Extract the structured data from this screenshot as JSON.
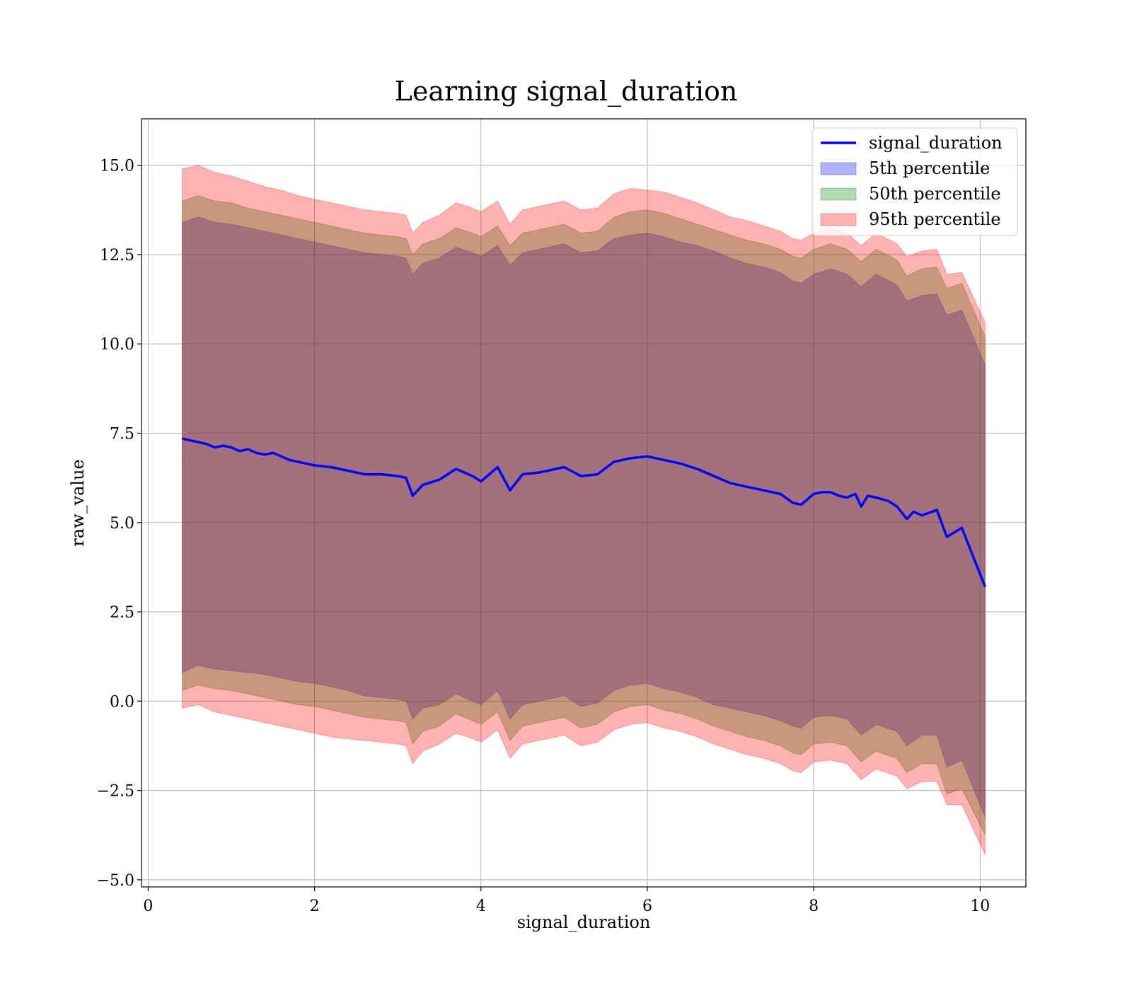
{
  "chart_data": {
    "type": "area",
    "title": "Learning signal_duration",
    "xlabel": "signal_duration",
    "ylabel": "raw_value",
    "xlim": [
      -0.08,
      10.55
    ],
    "ylim": [
      -5.2,
      16.3
    ],
    "xticks": [
      0,
      2,
      4,
      6,
      8,
      10
    ],
    "xtick_labels": [
      "0",
      "2",
      "4",
      "6",
      "8",
      "10"
    ],
    "yticks": [
      -5.0,
      -2.5,
      0.0,
      2.5,
      5.0,
      7.5,
      10.0,
      12.5,
      15.0
    ],
    "ytick_labels": [
      "−5.0",
      "−2.5",
      "0.0",
      "2.5",
      "5.0",
      "7.5",
      "10.0",
      "12.5",
      "15.0"
    ],
    "grid": true,
    "legend_position": "top-right",
    "colors": {
      "line": "#0000ff",
      "band_5th": "#0000ff",
      "band_50th": "#008000",
      "band_95th": "#ff0000"
    },
    "series": [
      {
        "name": "signal_duration",
        "kind": "line",
        "x": [
          0.41,
          0.5,
          0.6,
          0.7,
          0.8,
          0.9,
          1.0,
          1.1,
          1.2,
          1.3,
          1.4,
          1.5,
          1.6,
          1.7,
          1.8,
          1.9,
          2.0,
          2.2,
          2.4,
          2.6,
          2.8,
          3.0,
          3.1,
          3.18,
          3.3,
          3.5,
          3.7,
          3.9,
          4.0,
          4.2,
          4.35,
          4.5,
          4.7,
          4.9,
          5.0,
          5.2,
          5.4,
          5.6,
          5.8,
          6.0,
          6.2,
          6.4,
          6.6,
          6.8,
          7.0,
          7.2,
          7.4,
          7.6,
          7.75,
          7.85,
          8.0,
          8.1,
          8.2,
          8.3,
          8.4,
          8.5,
          8.57,
          8.65,
          8.75,
          8.9,
          9.0,
          9.12,
          9.2,
          9.3,
          9.48,
          9.6,
          9.78,
          10.06
        ],
        "y": [
          7.35,
          7.3,
          7.25,
          7.2,
          7.1,
          7.15,
          7.1,
          7.0,
          7.05,
          6.95,
          6.9,
          6.95,
          6.85,
          6.75,
          6.7,
          6.65,
          6.6,
          6.55,
          6.45,
          6.35,
          6.35,
          6.3,
          6.25,
          5.75,
          6.05,
          6.2,
          6.5,
          6.3,
          6.15,
          6.55,
          5.9,
          6.35,
          6.4,
          6.5,
          6.55,
          6.3,
          6.35,
          6.7,
          6.8,
          6.85,
          6.75,
          6.65,
          6.5,
          6.3,
          6.1,
          6.0,
          5.9,
          5.8,
          5.55,
          5.5,
          5.8,
          5.85,
          5.85,
          5.75,
          5.7,
          5.8,
          5.45,
          5.75,
          5.7,
          5.6,
          5.45,
          5.1,
          5.3,
          5.2,
          5.35,
          4.6,
          4.85,
          3.2
        ]
      },
      {
        "name": "5th percentile",
        "kind": "band",
        "x": [
          0.41,
          0.6,
          0.8,
          1.0,
          1.2,
          1.4,
          1.6,
          1.8,
          2.0,
          2.2,
          2.4,
          2.6,
          2.8,
          3.0,
          3.1,
          3.18,
          3.3,
          3.5,
          3.7,
          3.9,
          4.0,
          4.2,
          4.35,
          4.5,
          4.7,
          4.9,
          5.0,
          5.2,
          5.4,
          5.6,
          5.8,
          6.0,
          6.2,
          6.4,
          6.6,
          6.8,
          7.0,
          7.2,
          7.4,
          7.6,
          7.75,
          7.85,
          8.0,
          8.2,
          8.4,
          8.57,
          8.75,
          9.0,
          9.12,
          9.3,
          9.48,
          9.6,
          9.78,
          10.06
        ],
        "lower": [
          0.8,
          1.0,
          0.9,
          0.85,
          0.8,
          0.75,
          0.65,
          0.55,
          0.5,
          0.4,
          0.3,
          0.15,
          0.1,
          0.05,
          0.0,
          -0.5,
          -0.2,
          -0.1,
          0.2,
          0.0,
          -0.1,
          0.3,
          -0.5,
          -0.1,
          0.0,
          0.1,
          0.15,
          -0.15,
          -0.05,
          0.3,
          0.45,
          0.5,
          0.35,
          0.25,
          0.1,
          -0.1,
          -0.2,
          -0.3,
          -0.4,
          -0.55,
          -0.7,
          -0.75,
          -0.45,
          -0.4,
          -0.5,
          -0.95,
          -0.65,
          -0.85,
          -1.25,
          -0.95,
          -0.95,
          -1.85,
          -1.65,
          -3.25
        ],
        "upper": [
          13.4,
          13.55,
          13.4,
          13.35,
          13.25,
          13.15,
          13.05,
          12.95,
          12.85,
          12.75,
          12.65,
          12.55,
          12.5,
          12.45,
          12.4,
          11.95,
          12.25,
          12.4,
          12.7,
          12.55,
          12.45,
          12.75,
          12.2,
          12.55,
          12.65,
          12.75,
          12.8,
          12.55,
          12.6,
          12.95,
          13.05,
          13.1,
          13.0,
          12.85,
          12.75,
          12.6,
          12.4,
          12.25,
          12.15,
          12.0,
          11.75,
          11.7,
          11.95,
          12.1,
          11.95,
          11.6,
          11.95,
          11.65,
          11.2,
          11.35,
          11.4,
          10.8,
          10.95,
          9.4
        ]
      },
      {
        "name": "50th percentile",
        "kind": "band",
        "x": [
          0.41,
          0.6,
          0.8,
          1.0,
          1.2,
          1.4,
          1.6,
          1.8,
          2.0,
          2.2,
          2.4,
          2.6,
          2.8,
          3.0,
          3.1,
          3.18,
          3.3,
          3.5,
          3.7,
          3.9,
          4.0,
          4.2,
          4.35,
          4.5,
          4.7,
          4.9,
          5.0,
          5.2,
          5.4,
          5.6,
          5.8,
          6.0,
          6.2,
          6.4,
          6.6,
          6.8,
          7.0,
          7.2,
          7.4,
          7.6,
          7.75,
          7.85,
          8.0,
          8.2,
          8.4,
          8.57,
          8.75,
          9.0,
          9.12,
          9.3,
          9.48,
          9.6,
          9.78,
          10.06
        ],
        "lower": [
          0.3,
          0.45,
          0.35,
          0.3,
          0.2,
          0.1,
          0.0,
          -0.1,
          -0.15,
          -0.25,
          -0.35,
          -0.45,
          -0.5,
          -0.55,
          -0.6,
          -1.2,
          -0.85,
          -0.7,
          -0.35,
          -0.55,
          -0.65,
          -0.3,
          -1.1,
          -0.7,
          -0.6,
          -0.5,
          -0.45,
          -0.75,
          -0.65,
          -0.3,
          -0.15,
          -0.1,
          -0.25,
          -0.35,
          -0.5,
          -0.7,
          -0.85,
          -1.0,
          -1.1,
          -1.25,
          -1.45,
          -1.5,
          -1.2,
          -1.15,
          -1.25,
          -1.7,
          -1.4,
          -1.6,
          -2.0,
          -1.75,
          -1.75,
          -2.6,
          -2.45,
          -3.75
        ],
        "upper": [
          14.0,
          14.15,
          14.0,
          13.95,
          13.8,
          13.7,
          13.6,
          13.5,
          13.4,
          13.3,
          13.2,
          13.1,
          13.05,
          13.0,
          12.95,
          12.5,
          12.8,
          12.95,
          13.25,
          13.1,
          13.0,
          13.3,
          12.75,
          13.1,
          13.2,
          13.3,
          13.35,
          13.1,
          13.15,
          13.55,
          13.7,
          13.75,
          13.65,
          13.5,
          13.35,
          13.2,
          13.05,
          12.9,
          12.8,
          12.65,
          12.45,
          12.4,
          12.65,
          12.8,
          12.65,
          12.3,
          12.65,
          12.35,
          11.9,
          12.1,
          12.15,
          11.55,
          11.7,
          10.2
        ]
      },
      {
        "name": "95th percentile",
        "kind": "band",
        "x": [
          0.41,
          0.6,
          0.8,
          1.0,
          1.2,
          1.4,
          1.6,
          1.8,
          2.0,
          2.2,
          2.4,
          2.6,
          2.8,
          3.0,
          3.1,
          3.18,
          3.3,
          3.5,
          3.7,
          3.9,
          4.0,
          4.2,
          4.35,
          4.5,
          4.7,
          4.9,
          5.0,
          5.2,
          5.4,
          5.6,
          5.8,
          6.0,
          6.2,
          6.4,
          6.6,
          6.8,
          7.0,
          7.2,
          7.4,
          7.6,
          7.75,
          7.85,
          8.0,
          8.2,
          8.4,
          8.57,
          8.75,
          9.0,
          9.12,
          9.3,
          9.48,
          9.6,
          9.78,
          10.06
        ],
        "lower": [
          -0.2,
          -0.1,
          -0.3,
          -0.4,
          -0.5,
          -0.6,
          -0.7,
          -0.8,
          -0.9,
          -1.0,
          -1.05,
          -1.1,
          -1.15,
          -1.2,
          -1.25,
          -1.75,
          -1.4,
          -1.2,
          -0.9,
          -1.05,
          -1.15,
          -0.8,
          -1.6,
          -1.2,
          -1.1,
          -1.0,
          -0.95,
          -1.25,
          -1.15,
          -0.8,
          -0.65,
          -0.6,
          -0.75,
          -0.85,
          -1.0,
          -1.2,
          -1.35,
          -1.5,
          -1.6,
          -1.75,
          -1.95,
          -2.0,
          -1.7,
          -1.65,
          -1.75,
          -2.2,
          -1.9,
          -2.1,
          -2.45,
          -2.25,
          -2.25,
          -2.9,
          -2.9,
          -4.3
        ],
        "upper": [
          14.9,
          15.0,
          14.8,
          14.7,
          14.55,
          14.4,
          14.3,
          14.15,
          14.05,
          13.95,
          13.85,
          13.75,
          13.7,
          13.65,
          13.6,
          13.1,
          13.4,
          13.6,
          13.95,
          13.8,
          13.7,
          14.0,
          13.35,
          13.75,
          13.85,
          13.95,
          14.0,
          13.75,
          13.8,
          14.2,
          14.35,
          14.3,
          14.25,
          14.1,
          13.95,
          13.75,
          13.55,
          13.45,
          13.3,
          13.15,
          12.95,
          12.9,
          13.1,
          13.25,
          13.1,
          12.75,
          13.1,
          12.8,
          12.45,
          12.6,
          12.65,
          11.95,
          12.0,
          10.6
        ]
      }
    ]
  }
}
